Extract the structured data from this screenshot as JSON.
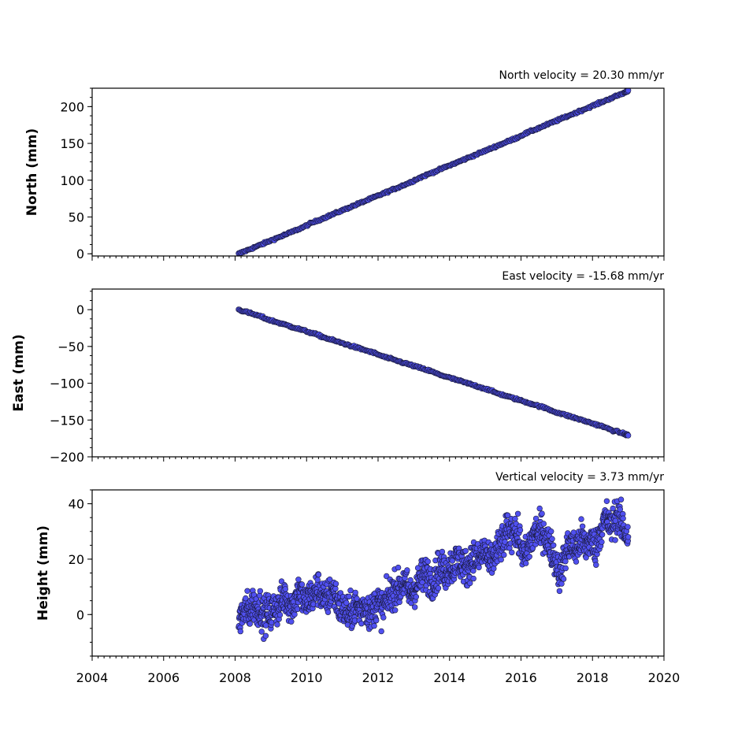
{
  "chart_data": [
    {
      "type": "scatter",
      "title": "North velocity = 20.30 mm/yr",
      "ylabel": "North (mm)",
      "xlabel": "",
      "xlim": [
        2004,
        2020
      ],
      "ylim": [
        -3,
        225
      ],
      "yticks": [
        0,
        50,
        100,
        150,
        200
      ],
      "velocity_mm_per_yr": 20.3,
      "series": [
        {
          "x": [
            2008.1,
            2008.3,
            2008.5,
            2008.7,
            2008.9,
            2009.1,
            2009.3,
            2009.5,
            2009.7,
            2009.9,
            2010.1,
            2010.3,
            2010.5,
            2010.7,
            2010.9,
            2011.1,
            2011.3,
            2011.5,
            2011.7,
            2011.9,
            2012.1,
            2012.3,
            2012.5,
            2012.7,
            2012.9,
            2013.1,
            2013.3,
            2013.5,
            2013.7,
            2013.9,
            2014.1,
            2014.3,
            2014.5,
            2014.7,
            2014.9,
            2015.1,
            2015.3,
            2015.5,
            2015.7,
            2015.9,
            2016.1,
            2016.3,
            2016.5,
            2016.7,
            2016.9,
            2017.1,
            2017.3,
            2017.5,
            2017.7,
            2017.9,
            2018.1,
            2018.3,
            2018.5,
            2018.7,
            2018.9,
            2019.0
          ],
          "y": [
            0,
            4,
            8,
            12,
            16,
            20,
            24,
            28,
            32,
            36,
            41,
            45,
            49,
            53,
            57,
            61,
            65,
            69,
            73,
            77,
            81,
            85,
            89,
            93,
            97,
            102,
            106,
            110,
            114,
            118,
            122,
            126,
            130,
            134,
            138,
            142,
            146,
            150,
            154,
            158,
            163,
            167,
            171,
            175,
            179,
            183,
            187,
            191,
            195,
            199,
            203,
            207,
            211,
            215,
            219,
            222
          ]
        }
      ]
    },
    {
      "type": "scatter",
      "title": "East velocity = -15.68 mm/yr",
      "ylabel": "East (mm)",
      "xlabel": "",
      "xlim": [
        2004,
        2020
      ],
      "ylim": [
        -200,
        28
      ],
      "yticks": [
        0,
        -50,
        -100,
        -150,
        -200
      ],
      "velocity_mm_per_yr": -15.68,
      "series": [
        {
          "x": [
            2008.1,
            2008.3,
            2008.5,
            2008.7,
            2008.9,
            2009.1,
            2009.3,
            2009.5,
            2009.7,
            2009.9,
            2010.1,
            2010.3,
            2010.5,
            2010.7,
            2010.9,
            2011.1,
            2011.3,
            2011.5,
            2011.7,
            2011.9,
            2012.1,
            2012.3,
            2012.5,
            2012.7,
            2012.9,
            2013.1,
            2013.3,
            2013.5,
            2013.7,
            2013.9,
            2014.1,
            2014.3,
            2014.5,
            2014.7,
            2014.9,
            2015.1,
            2015.3,
            2015.5,
            2015.7,
            2015.9,
            2016.1,
            2016.3,
            2016.5,
            2016.7,
            2016.9,
            2017.1,
            2017.3,
            2017.5,
            2017.7,
            2017.9,
            2018.1,
            2018.3,
            2018.5,
            2018.7,
            2018.9,
            2019.0
          ],
          "y": [
            0,
            -3,
            -6,
            -9,
            -13,
            -16,
            -19,
            -22,
            -25,
            -28,
            -31,
            -34,
            -38,
            -41,
            -44,
            -47,
            -50,
            -53,
            -56,
            -59,
            -63,
            -66,
            -69,
            -72,
            -75,
            -78,
            -81,
            -84,
            -88,
            -91,
            -94,
            -97,
            -100,
            -103,
            -106,
            -109,
            -113,
            -116,
            -119,
            -122,
            -125,
            -128,
            -131,
            -134,
            -138,
            -141,
            -144,
            -147,
            -150,
            -153,
            -156,
            -159,
            -163,
            -166,
            -169,
            -171
          ]
        }
      ]
    },
    {
      "type": "scatter",
      "title": "Vertical velocity = 3.73 mm/yr",
      "ylabel": "Height (mm)",
      "xlabel": "",
      "xlim": [
        2004,
        2020
      ],
      "ylim": [
        -15,
        45
      ],
      "yticks": [
        0,
        20,
        40
      ],
      "xticks": [
        2004,
        2006,
        2008,
        2010,
        2012,
        2014,
        2016,
        2018,
        2020
      ],
      "velocity_mm_per_yr": 3.73,
      "series": [
        {
          "x": [
            2008.1,
            2008.2,
            2008.3,
            2008.4,
            2008.5,
            2008.6,
            2008.7,
            2008.8,
            2008.9,
            2009.0,
            2009.1,
            2009.2,
            2009.3,
            2009.4,
            2009.5,
            2009.6,
            2009.7,
            2009.8,
            2009.9,
            2010.0,
            2010.1,
            2010.2,
            2010.3,
            2010.4,
            2010.5,
            2010.6,
            2010.7,
            2010.8,
            2010.9,
            2011.0,
            2011.1,
            2011.2,
            2011.3,
            2011.4,
            2011.5,
            2011.6,
            2011.7,
            2011.8,
            2011.9,
            2012.0,
            2012.1,
            2012.2,
            2012.3,
            2012.4,
            2012.5,
            2012.6,
            2012.7,
            2012.8,
            2012.9,
            2013.0,
            2013.1,
            2013.2,
            2013.3,
            2013.4,
            2013.5,
            2013.6,
            2013.7,
            2013.8,
            2013.9,
            2014.0,
            2014.1,
            2014.2,
            2014.3,
            2014.4,
            2014.5,
            2014.6,
            2014.7,
            2014.8,
            2014.9,
            2015.0,
            2015.1,
            2015.2,
            2015.3,
            2015.4,
            2015.5,
            2015.6,
            2015.7,
            2015.8,
            2015.9,
            2016.0,
            2016.1,
            2016.2,
            2016.3,
            2016.4,
            2016.5,
            2016.6,
            2016.7,
            2016.8,
            2016.9,
            2017.0,
            2017.1,
            2017.2,
            2017.3,
            2017.4,
            2017.5,
            2017.6,
            2017.7,
            2017.8,
            2017.9,
            2018.0,
            2018.1,
            2018.2,
            2018.3,
            2018.4,
            2018.5,
            2018.6,
            2018.7,
            2018.8,
            2018.9,
            2019.0
          ],
          "y": [
            -2,
            0,
            2,
            1,
            4,
            2,
            3,
            -1,
            1,
            0,
            3,
            2,
            5,
            7,
            4,
            3,
            6,
            9,
            5,
            4,
            7,
            6,
            10,
            8,
            5,
            6,
            9,
            7,
            3,
            2,
            1,
            0,
            2,
            3,
            1,
            4,
            2,
            0,
            3,
            5,
            2,
            4,
            6,
            8,
            10,
            9,
            12,
            10,
            7,
            9,
            11,
            13,
            15,
            14,
            12,
            13,
            17,
            16,
            15,
            18,
            17,
            20,
            19,
            18,
            16,
            20,
            21,
            19,
            22,
            23,
            18,
            20,
            22,
            25,
            26,
            30,
            29,
            32,
            28,
            25,
            20,
            24,
            27,
            30,
            29,
            31,
            27,
            25,
            22,
            18,
            14,
            20,
            24,
            26,
            23,
            25,
            28,
            24,
            27,
            26,
            24,
            30,
            33,
            35,
            31,
            34,
            36,
            33,
            30,
            28
          ]
        }
      ]
    }
  ],
  "style": {
    "marker_fill": "#5050f0",
    "marker_edge": "#1a1a3c"
  }
}
